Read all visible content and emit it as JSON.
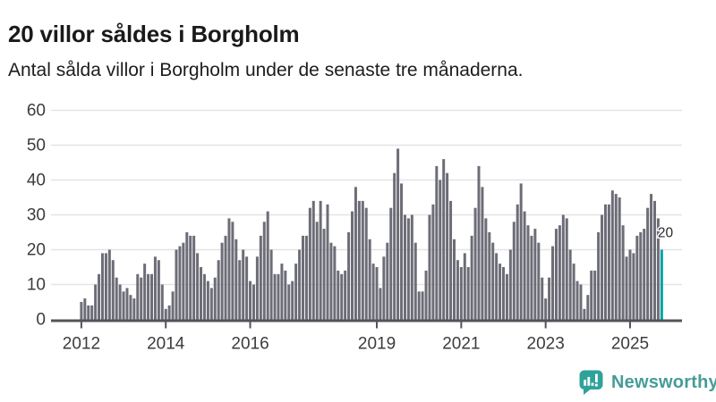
{
  "header": {
    "title": "20 villor såldes i Borgholm",
    "subtitle": "Antal sålda villor i Borgholm under de senaste tre månaderna."
  },
  "footer": {
    "brand": "Newsworthy",
    "logo_icon": "newsworthy-chart-bubble-icon"
  },
  "colors": {
    "background": "#ffffff",
    "bar": "#6d6d78",
    "highlight": "#00a3a3",
    "grid": "#e4e4e4",
    "axis": "#53535a",
    "axis_text": "#3c3c3c",
    "title_text": "#1a1a1a",
    "label_text": "#2b2b2b",
    "brand_teal": "#479c96",
    "logo_teal": "#2fa29a"
  },
  "chart_data": {
    "type": "bar",
    "title": "20 villor såldes i Borgholm",
    "subtitle": "Antal sålda villor i Borgholm under de senaste tre månaderna.",
    "xlabel": "",
    "ylabel": "",
    "ylim": [
      0,
      60
    ],
    "y_ticks": [
      0,
      10,
      20,
      30,
      40,
      50,
      60
    ],
    "grid": "horizontal",
    "legend": "none",
    "x_monthly_start": "2012-01",
    "x_monthly_end": "2025-10",
    "x_ticks": [
      {
        "label": "2012",
        "month_index": 0
      },
      {
        "label": "2014",
        "month_index": 24
      },
      {
        "label": "2016",
        "month_index": 48
      },
      {
        "label": "2019",
        "month_index": 84
      },
      {
        "label": "2021",
        "month_index": 108
      },
      {
        "label": "2023",
        "month_index": 132
      },
      {
        "label": "2025",
        "month_index": 156
      }
    ],
    "series": [
      {
        "name": "Antal sålda villor (rullande tre månader)",
        "values": [
          5,
          6,
          4,
          4,
          10,
          13,
          19,
          19,
          20,
          17,
          12,
          10,
          8,
          9,
          7,
          6,
          13,
          12,
          16,
          13,
          13,
          18,
          17,
          10,
          3,
          4,
          8,
          20,
          21,
          22,
          25,
          24,
          24,
          19,
          15,
          13,
          11,
          9,
          12,
          17,
          22,
          24,
          29,
          28,
          23,
          17,
          20,
          18,
          11,
          10,
          18,
          24,
          28,
          31,
          20,
          13,
          13,
          16,
          14,
          10,
          11,
          16,
          20,
          24,
          24,
          32,
          34,
          28,
          34,
          26,
          33,
          22,
          21,
          14,
          13,
          14,
          25,
          31,
          38,
          34,
          34,
          32,
          23,
          16,
          15,
          9,
          18,
          22,
          32,
          42,
          49,
          39,
          30,
          29,
          30,
          22,
          8,
          8,
          14,
          30,
          33,
          44,
          40,
          46,
          42,
          34,
          23,
          17,
          15,
          19,
          15,
          24,
          32,
          44,
          38,
          29,
          25,
          22,
          19,
          16,
          15,
          13,
          20,
          28,
          33,
          39,
          31,
          27,
          24,
          26,
          22,
          12,
          6,
          12,
          21,
          26,
          27,
          30,
          29,
          20,
          16,
          11,
          10,
          3,
          7,
          14,
          14,
          25,
          30,
          33,
          33,
          37,
          36,
          35,
          27,
          18,
          20,
          19,
          24,
          25,
          26,
          32,
          36,
          34,
          29,
          20
        ]
      }
    ],
    "highlight": {
      "index": 165,
      "value": 20,
      "label": "20",
      "color": "#00a3a3"
    }
  }
}
